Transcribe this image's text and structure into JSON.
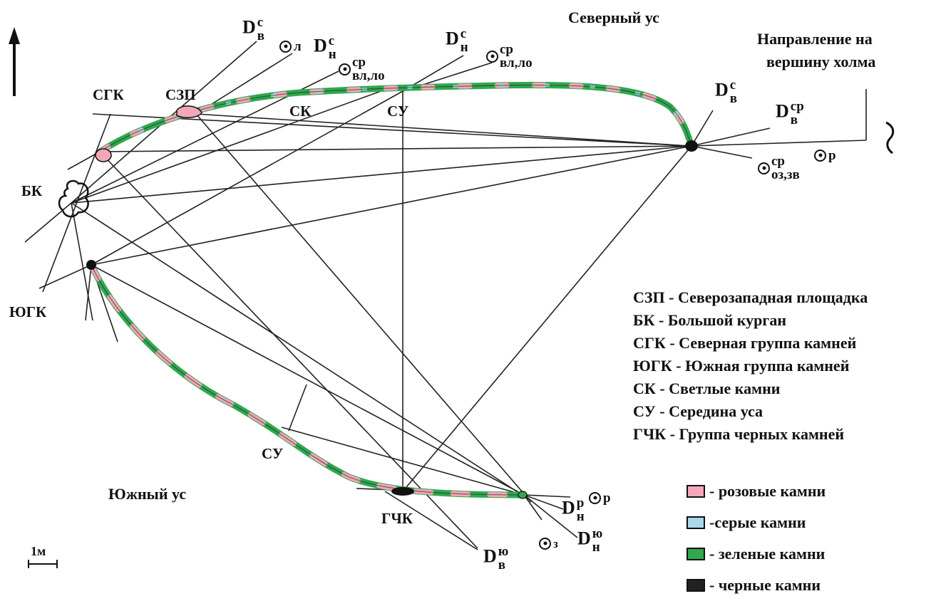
{
  "labels": {
    "north_whisker": "Северный ус",
    "south_whisker": "Южный ус",
    "direction_line1": "Направление на",
    "direction_line2": "вершину холма",
    "sgk": "СГК",
    "szp": "СЗП",
    "bk": "БК",
    "yugk": "ЮГК",
    "sk": "СК",
    "su_north": "СУ",
    "su_south": "СУ",
    "gchk": "ГЧК",
    "scale": "1м"
  },
  "astro": {
    "moon_v_s": {
      "moon": "D",
      "sub": "в",
      "sup": "с"
    },
    "sun_l": {
      "sub": "л"
    },
    "moon_n_s": {
      "moon": "D",
      "sub": "н",
      "sup": "с"
    },
    "sun_vl_lo_1": {
      "sub": "вл,ло",
      "sup": "ср"
    },
    "moon_n_s_2": {
      "moon": "D",
      "sub": "н",
      "sup": "с"
    },
    "sun_vl_lo_2": {
      "sub": "вл,ло",
      "sup": "ср"
    },
    "moon_v_s_east": {
      "moon": "D",
      "sub": "в",
      "sup": "с"
    },
    "moon_v_sr_east": {
      "moon": "D",
      "sub": "в",
      "sup": "ср"
    },
    "sun_r_east": {
      "sub": "р"
    },
    "sun_oz_zv": {
      "sub": "оз,зв",
      "sup": "ср"
    },
    "sun_r_south": {
      "sub": "р"
    },
    "moon_n_r": {
      "moon": "D",
      "sub": "н",
      "sup": "р"
    },
    "sun_z": {
      "sub": "з"
    },
    "moon_n_yu": {
      "moon": "D",
      "sub": "н",
      "sup": "ю"
    },
    "moon_v_yu": {
      "moon": "D",
      "sub": "в",
      "sup": "ю"
    }
  },
  "abbreviations": [
    {
      "abbr": "СЗП",
      "text": "Северозападная площадка"
    },
    {
      "abbr": "БК",
      "text": "Большой курган"
    },
    {
      "abbr": "СГК",
      "text": "Северная группа камней"
    },
    {
      "abbr": "ЮГК",
      "text": "Южная группа камней"
    },
    {
      "abbr": "СК",
      "text": "Светлые камни"
    },
    {
      "abbr": "СУ",
      "text": "Середина уса"
    },
    {
      "abbr": "ГЧК",
      "text": "Группа черных камней"
    }
  ],
  "legend": [
    {
      "text": "- розовые камни",
      "color": "#f4a7b9"
    },
    {
      "text": "-серые камни",
      "color": "#a8d8ea"
    },
    {
      "text": "- зеленые камни",
      "color": "#2fa84f"
    },
    {
      "text": "- черные камни",
      "color": "#222222"
    }
  ],
  "colors": {
    "pink": "#f4a7b9",
    "grey": "#a8d8ea",
    "green": "#2fa84f",
    "black": "#111111"
  }
}
